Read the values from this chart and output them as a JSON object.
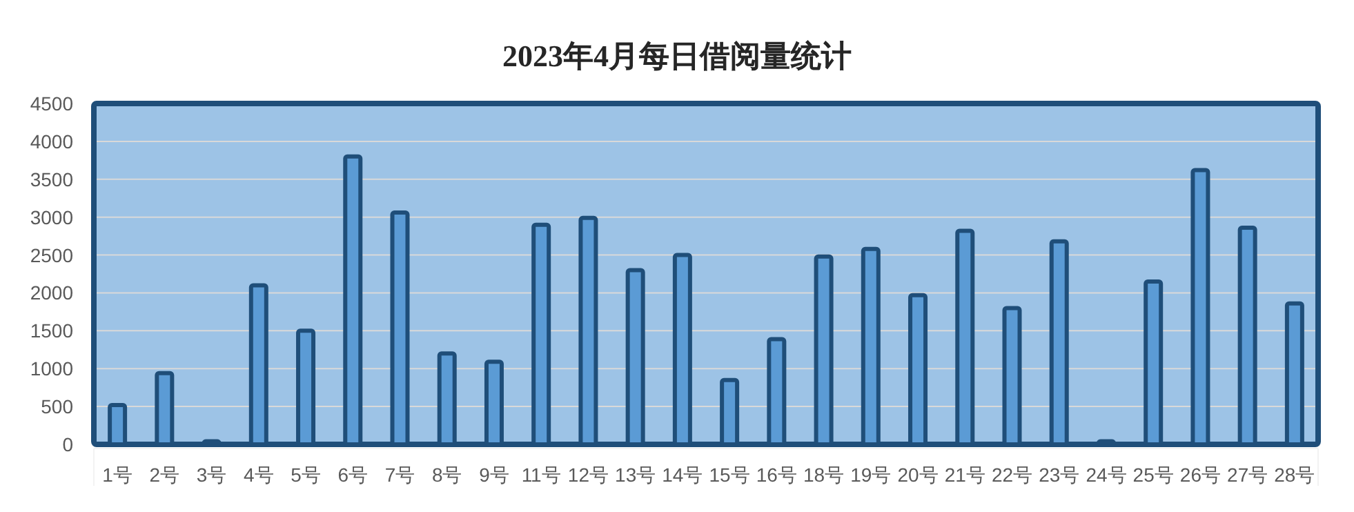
{
  "chart_data": {
    "type": "bar",
    "title": "2023年4月每日借阅量统计",
    "categories": [
      "1号",
      "2号",
      "3号",
      "4号",
      "5号",
      "6号",
      "7号",
      "8号",
      "9号",
      "11号",
      "12号",
      "13号",
      "14号",
      "15号",
      "16号",
      "18号",
      "19号",
      "20号",
      "21号",
      "22号",
      "23号",
      "24号",
      "25号",
      "26号",
      "27号",
      "28号"
    ],
    "values": [
      520,
      940,
      40,
      2100,
      1500,
      3800,
      3060,
      1200,
      1090,
      2900,
      2990,
      2300,
      2500,
      850,
      1390,
      2480,
      2580,
      1970,
      2820,
      1800,
      2680,
      40,
      2150,
      3620,
      2860,
      1860
    ],
    "color": "#5b9bd5",
    "ylim": [
      0,
      4500
    ],
    "yticks": [
      0,
      500,
      1000,
      1500,
      2000,
      2500,
      3000,
      3500,
      4000,
      4500
    ],
    "grid": "y"
  }
}
